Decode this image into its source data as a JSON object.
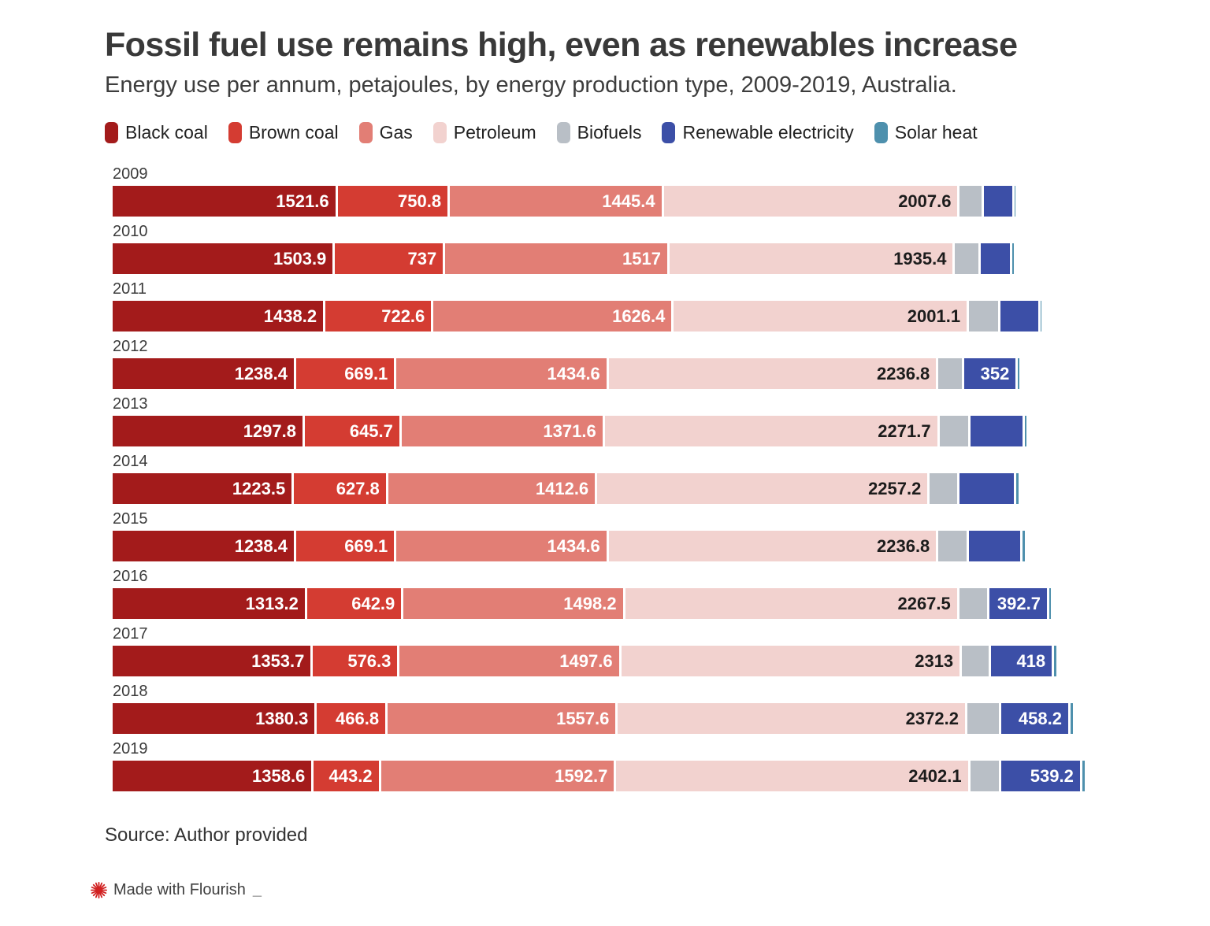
{
  "title": "Fossil fuel use remains high, even as renewables increase",
  "subtitle": "Energy use per annum, petajoules, by energy production type, 2009-2019, Australia.",
  "colors": {
    "black_coal": "#a31b1b",
    "brown_coal": "#d43c32",
    "gas": "#e27e75",
    "petroleum": "#f2d2cf",
    "biofuels": "#b9bfc6",
    "renewable_electricity": "#3c4fa7",
    "solar_heat": "#4e90ad",
    "credit_icon": "#d12222"
  },
  "legend": [
    {
      "key": "black_coal",
      "label": "Black coal"
    },
    {
      "key": "brown_coal",
      "label": "Brown coal"
    },
    {
      "key": "gas",
      "label": "Gas"
    },
    {
      "key": "petroleum",
      "label": "Petroleum"
    },
    {
      "key": "biofuels",
      "label": "Biofuels"
    },
    {
      "key": "renewable_electricity",
      "label": "Renewable electricity"
    },
    {
      "key": "solar_heat",
      "label": "Solar heat"
    }
  ],
  "chart_data": {
    "type": "bar",
    "stacked": true,
    "orientation": "horizontal",
    "unit": "petajoules",
    "title": "Fossil fuel use remains high, even as renewables increase",
    "subtitle": "Energy use per annum, petajoules, by energy production type, 2009-2019, Australia.",
    "legend_position": "top",
    "grid": false,
    "xlim": [
      0,
      6660
    ],
    "categories": [
      "2009",
      "2010",
      "2011",
      "2012",
      "2013",
      "2014",
      "2015",
      "2016",
      "2017",
      "2018",
      "2019"
    ],
    "series": [
      {
        "key": "black_coal",
        "name": "Black coal",
        "label_color": "#ffffff",
        "values": [
          1521.6,
          1503.9,
          1438.2,
          1238.4,
          1297.8,
          1223.5,
          1238.4,
          1313.2,
          1353.7,
          1380.3,
          1358.6
        ],
        "labels": [
          "1521.6",
          "1503.9",
          "1438.2",
          "1238.4",
          "1297.8",
          "1223.5",
          "1238.4",
          "1313.2",
          "1353.7",
          "1380.3",
          "1358.6"
        ]
      },
      {
        "key": "brown_coal",
        "name": "Brown coal",
        "label_color": "#ffffff",
        "values": [
          750.8,
          737,
          722.6,
          669.1,
          645.7,
          627.8,
          669.1,
          642.9,
          576.3,
          466.8,
          443.2
        ],
        "labels": [
          "750.8",
          "737",
          "722.6",
          "669.1",
          "645.7",
          "627.8",
          "669.1",
          "642.9",
          "576.3",
          "466.8",
          "443.2"
        ]
      },
      {
        "key": "gas",
        "name": "Gas",
        "label_color": "#ffffff",
        "values": [
          1445.4,
          1517,
          1626.4,
          1434.6,
          1371.6,
          1412.6,
          1434.6,
          1498.2,
          1497.6,
          1557.6,
          1592.7
        ],
        "labels": [
          "1445.4",
          "1517",
          "1626.4",
          "1434.6",
          "1371.6",
          "1412.6",
          "1434.6",
          "1498.2",
          "1497.6",
          "1557.6",
          "1592.7"
        ]
      },
      {
        "key": "petroleum",
        "name": "Petroleum",
        "label_color": "#1c1c1c",
        "values": [
          2007.6,
          1935.4,
          2001.1,
          2236.8,
          2271.7,
          2257.2,
          2236.8,
          2267.5,
          2313,
          2372.2,
          2402.1
        ],
        "labels": [
          "2007.6",
          "1935.4",
          "2001.1",
          "2236.8",
          "2271.7",
          "2257.2",
          "2236.8",
          "2267.5",
          "2313",
          "2372.2",
          "2402.1"
        ]
      },
      {
        "key": "biofuels",
        "name": "Biofuels",
        "estimated": true,
        "values": [
          150,
          160,
          200,
          160,
          195,
          185,
          195,
          190,
          180,
          215,
          195
        ],
        "labels": [
          null,
          null,
          null,
          null,
          null,
          null,
          null,
          null,
          null,
          null,
          null
        ]
      },
      {
        "key": "renewable_electricity",
        "name": "Renewable electricity",
        "label_color": "#ffffff",
        "values": [
          190,
          200,
          255,
          352,
          355,
          375,
          350,
          392.7,
          418,
          458.2,
          539.2
        ],
        "labels": [
          null,
          null,
          null,
          "352",
          null,
          null,
          null,
          "392.7",
          "418",
          "458.2",
          "539.2"
        ]
      },
      {
        "key": "solar_heat",
        "name": "Solar heat",
        "estimated": true,
        "values": [
          8,
          10,
          10,
          10,
          12,
          12,
          12,
          12,
          13,
          14,
          15
        ],
        "labels": [
          null,
          null,
          null,
          null,
          null,
          null,
          null,
          null,
          null,
          null,
          null
        ]
      }
    ]
  },
  "footer": {
    "source": "Source: Author provided",
    "credit": "Made with Flourish",
    "credit_cursor": "_"
  }
}
